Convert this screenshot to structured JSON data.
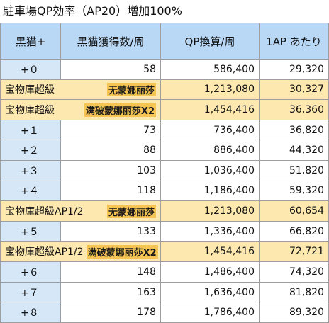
{
  "title": "駐車場QP効率（AP20）増加100%",
  "headers": [
    "黒猫+",
    "黒猫獲得数/周",
    "QP換算/周",
    "1AP あたり"
  ],
  "rows": [
    {
      "type": "plain",
      "lvl": "+０",
      "drop": "58",
      "qp": "586,400",
      "per_ap": "29,320"
    },
    {
      "type": "special",
      "label": "宝物庫超級",
      "np": "无蒙娜丽莎",
      "qp": "1,213,080",
      "per_ap": "30,327"
    },
    {
      "type": "special",
      "label": "宝物庫超級",
      "np": "满破蒙娜丽莎X2",
      "qp": "1,454,416",
      "per_ap": "36,360"
    },
    {
      "type": "plain",
      "lvl": "+１",
      "drop": "73",
      "qp": "736,400",
      "per_ap": "36,820"
    },
    {
      "type": "plain",
      "lvl": "+２",
      "drop": "88",
      "qp": "886,400",
      "per_ap": "44,320"
    },
    {
      "type": "plain",
      "lvl": "+３",
      "drop": "103",
      "qp": "1,036,400",
      "per_ap": "51,820"
    },
    {
      "type": "plain",
      "lvl": "+４",
      "drop": "118",
      "qp": "1,186,400",
      "per_ap": "59,320"
    },
    {
      "type": "special",
      "label": "宝物庫超級AP1/2",
      "np": "无蒙娜丽莎",
      "qp": "1,213,080",
      "per_ap": "60,654"
    },
    {
      "type": "plain",
      "lvl": "+５",
      "drop": "133",
      "qp": "1,336,400",
      "per_ap": "66,820"
    },
    {
      "type": "special",
      "label": "宝物庫超級AP1/2",
      "np": "满破蒙娜丽莎X2",
      "qp": "1,454,416",
      "per_ap": "72,721"
    },
    {
      "type": "plain",
      "lvl": "+６",
      "drop": "148",
      "qp": "1,486,400",
      "per_ap": "74,320"
    },
    {
      "type": "plain",
      "lvl": "+７",
      "drop": "163",
      "qp": "1,636,400",
      "per_ap": "81,820"
    },
    {
      "type": "plain",
      "lvl": "+８",
      "drop": "178",
      "qp": "1,786,400",
      "per_ap": "89,320"
    }
  ],
  "colors": {
    "header_bg": "#b9d8f5",
    "level_bg": "#d6e8f8",
    "special_bg": "#fde9b0",
    "np_badge": "#f5c453"
  }
}
